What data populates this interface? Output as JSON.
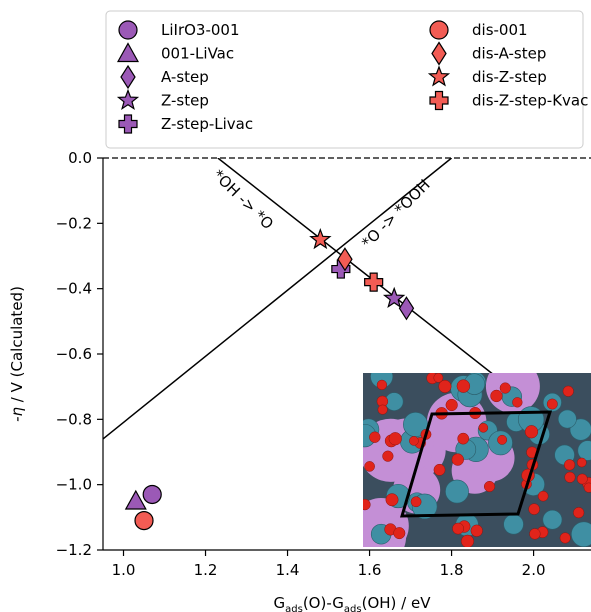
{
  "chart_data": {
    "type": "scatter",
    "xlabel": "G_ads(O)-G_ads(OH) / eV",
    "ylabel": "-η / V (Calculated)",
    "xlim": [
      0.95,
      2.14
    ],
    "ylim": [
      -1.2,
      0.0
    ],
    "x_ticks": [
      "1.0",
      "1.2",
      "1.4",
      "1.6",
      "1.8",
      "2.0"
    ],
    "y_ticks": [
      "0.0",
      "−0.2",
      "−0.4",
      "−0.6",
      "−0.8",
      "−1.0",
      "−1.2"
    ],
    "grid": false,
    "legend_position": "top",
    "lines": [
      {
        "label": "*OH -> *O",
        "points": [
          [
            1.23,
            0.0
          ],
          [
            1.97,
            -0.73
          ]
        ]
      },
      {
        "label": "*O -> *OOH",
        "points": [
          [
            0.95,
            -0.86
          ],
          [
            1.8,
            0.0
          ]
        ]
      }
    ],
    "reference_line": {
      "y": 0.0,
      "style": "dashed"
    },
    "series": [
      {
        "name": "LiIrO3-001",
        "marker": "circle",
        "color": "#9B59B6",
        "points": [
          [
            1.07,
            -1.03
          ]
        ]
      },
      {
        "name": "001-LiVac",
        "marker": "triangle",
        "color": "#9B59B6",
        "points": [
          [
            1.03,
            -1.05
          ]
        ]
      },
      {
        "name": "A-step",
        "marker": "diamond",
        "color": "#9B59B6",
        "points": [
          [
            1.69,
            -0.46
          ]
        ]
      },
      {
        "name": "Z-step",
        "marker": "star",
        "color": "#9B59B6",
        "points": [
          [
            1.66,
            -0.43
          ]
        ]
      },
      {
        "name": "Z-step-Livac",
        "marker": "plus",
        "color": "#9B59B6",
        "points": [
          [
            1.53,
            -0.34
          ]
        ]
      },
      {
        "name": "dis-001",
        "marker": "circle",
        "color": "#F25C54",
        "points": [
          [
            1.05,
            -1.11
          ]
        ]
      },
      {
        "name": "dis-A-step",
        "marker": "diamond",
        "color": "#F25C54",
        "points": [
          [
            1.54,
            -0.31
          ]
        ]
      },
      {
        "name": "dis-Z-step",
        "marker": "star",
        "color": "#F25C54",
        "points": [
          [
            1.48,
            -0.25
          ]
        ]
      },
      {
        "name": "dis-Z-step-Kvac",
        "marker": "plus",
        "color": "#F25C54",
        "points": [
          [
            1.61,
            -0.38
          ]
        ]
      }
    ]
  },
  "labels": {
    "xlabel_main": "G",
    "xlabel_sub1": "ads",
    "xlabel_mid": "(O)-G",
    "xlabel_sub2": "ads",
    "xlabel_end": "(OH) / eV",
    "ylabel_eta": "-η",
    "ylabel_rest": " / V (Calculated)"
  },
  "inset": {
    "description_colors": {
      "background": "#3b4e5e",
      "large_atom": "#c48fd6",
      "medium_atom": "#3f8fa3",
      "small_atom": "#e0241b"
    }
  }
}
